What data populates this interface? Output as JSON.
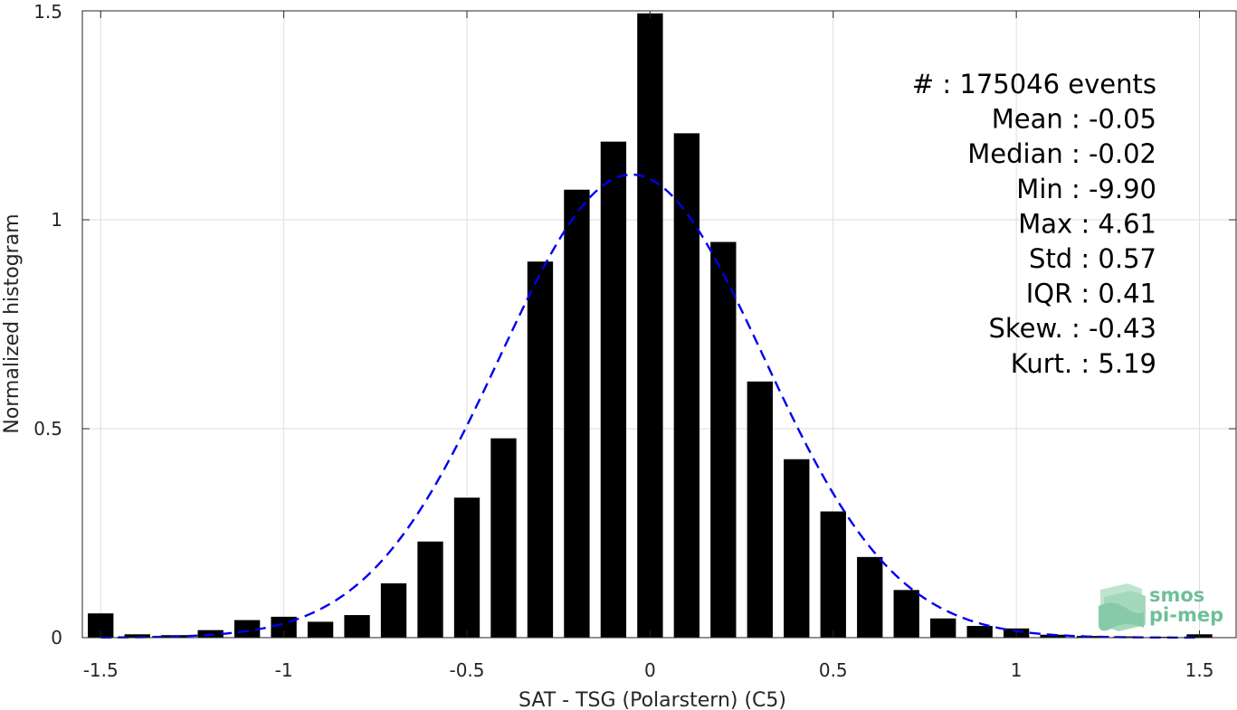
{
  "chart_data": {
    "type": "bar",
    "xlabel": "SAT - TSG (Polarstern) (C5)",
    "ylabel": "Normalized histogram",
    "xlim": [
      -1.55,
      1.6
    ],
    "ylim": [
      0,
      1.5
    ],
    "xticks": [
      -1.5,
      -1,
      -0.5,
      0,
      0.5,
      1,
      1.5
    ],
    "xtick_labels": [
      "-1.5",
      "-1",
      "-0.5",
      "0",
      "0.5",
      "1",
      "1.5"
    ],
    "yticks": [
      0,
      0.5,
      1,
      1.5
    ],
    "ytick_labels": [
      "0",
      "0.5",
      "1",
      "1.5"
    ],
    "grid": true,
    "bar_width": 0.07,
    "bar_color": "#000000",
    "bins": [
      {
        "x": -1.5,
        "y": 0.058
      },
      {
        "x": -1.4,
        "y": 0.008
      },
      {
        "x": -1.3,
        "y": 0.006
      },
      {
        "x": -1.2,
        "y": 0.018
      },
      {
        "x": -1.1,
        "y": 0.042
      },
      {
        "x": -1.0,
        "y": 0.05
      },
      {
        "x": -0.9,
        "y": 0.038
      },
      {
        "x": -0.8,
        "y": 0.054
      },
      {
        "x": -0.7,
        "y": 0.13
      },
      {
        "x": -0.6,
        "y": 0.23
      },
      {
        "x": -0.5,
        "y": 0.335
      },
      {
        "x": -0.4,
        "y": 0.477
      },
      {
        "x": -0.3,
        "y": 0.9
      },
      {
        "x": -0.2,
        "y": 1.072
      },
      {
        "x": -0.1,
        "y": 1.187
      },
      {
        "x": 0.0,
        "y": 1.494
      },
      {
        "x": 0.1,
        "y": 1.207
      },
      {
        "x": 0.2,
        "y": 0.947
      },
      {
        "x": 0.3,
        "y": 0.613
      },
      {
        "x": 0.4,
        "y": 0.427
      },
      {
        "x": 0.5,
        "y": 0.302
      },
      {
        "x": 0.6,
        "y": 0.193
      },
      {
        "x": 0.7,
        "y": 0.114
      },
      {
        "x": 0.8,
        "y": 0.046
      },
      {
        "x": 0.9,
        "y": 0.028
      },
      {
        "x": 1.0,
        "y": 0.022
      },
      {
        "x": 1.1,
        "y": 0.007
      },
      {
        "x": 1.2,
        "y": 0.004
      },
      {
        "x": 1.3,
        "y": 0.003
      },
      {
        "x": 1.4,
        "y": 0.002
      },
      {
        "x": 1.5,
        "y": 0.008
      }
    ],
    "fit_curve": {
      "type": "normal",
      "mean": -0.05,
      "std": 0.36,
      "color": "#0000ee",
      "style": "dashed",
      "x_range": [
        -1.5,
        1.5
      ]
    },
    "stats": [
      {
        "label": "#  ",
        "value": ": 175046 events"
      },
      {
        "label": "Mean ",
        "value": ": -0.05"
      },
      {
        "label": "Median ",
        "value": ": -0.02"
      },
      {
        "label": "Min ",
        "value": ": -9.90"
      },
      {
        "label": "Max ",
        "value": ": 4.61"
      },
      {
        "label": "Std ",
        "value": ": 0.57"
      },
      {
        "label": "IQR ",
        "value": ": 0.41"
      },
      {
        "label": "Skew. ",
        "value": ": -0.43"
      },
      {
        "label": "Kurt. ",
        "value": ": 5.19"
      }
    ]
  },
  "logo": {
    "line1": "smos",
    "line2": "pi-mep",
    "icon": "layered-wave-icon",
    "color": "#6fbf98"
  }
}
